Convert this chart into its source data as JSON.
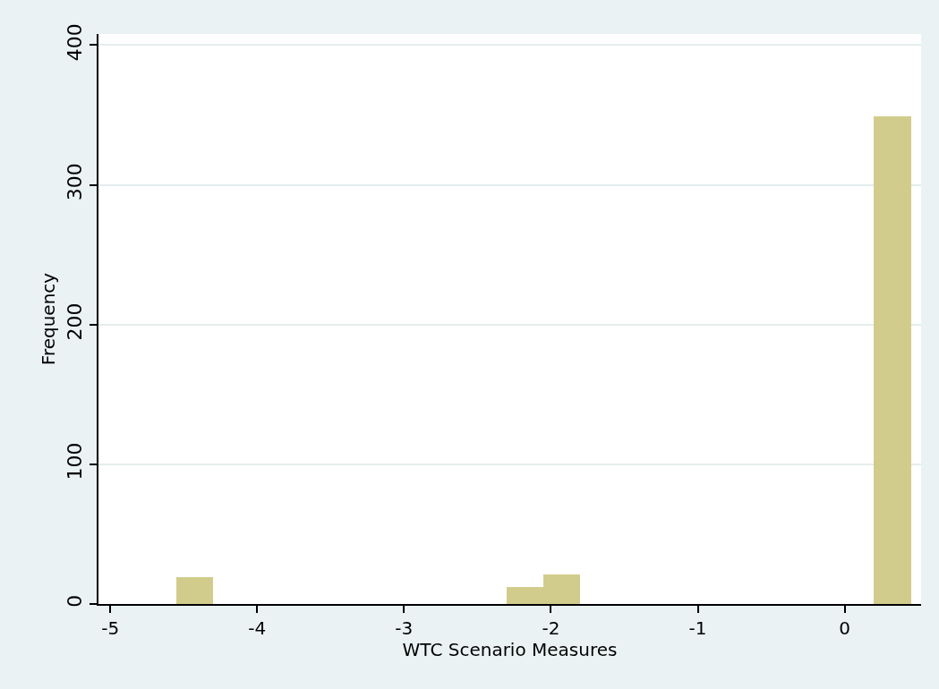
{
  "chart_data": {
    "type": "histogram",
    "xlabel": "WTC Scenario Measures",
    "ylabel": "Frequency",
    "bins": [
      -4.55,
      -4.3,
      -4.05,
      -3.8,
      -3.55,
      -3.3,
      -3.05,
      -2.8,
      -2.55,
      -2.3,
      -2.05,
      -1.8,
      -1.55,
      -1.3,
      -1.05,
      -0.8,
      -0.55,
      -0.3,
      -0.05,
      0.2,
      0.45
    ],
    "values": [
      19,
      0,
      0,
      0,
      0,
      0,
      0,
      0,
      0,
      12,
      21,
      0,
      0,
      0,
      0,
      0,
      0,
      0,
      0,
      349
    ],
    "color": "#d2cc8c",
    "xlim": [
      -5.08,
      0.52
    ],
    "xticks": [
      -5,
      -4,
      -3,
      -2,
      -1,
      0
    ],
    "ylim": [
      0,
      408
    ],
    "yticks": [
      0,
      100,
      200,
      300,
      400
    ],
    "grid": "y"
  }
}
